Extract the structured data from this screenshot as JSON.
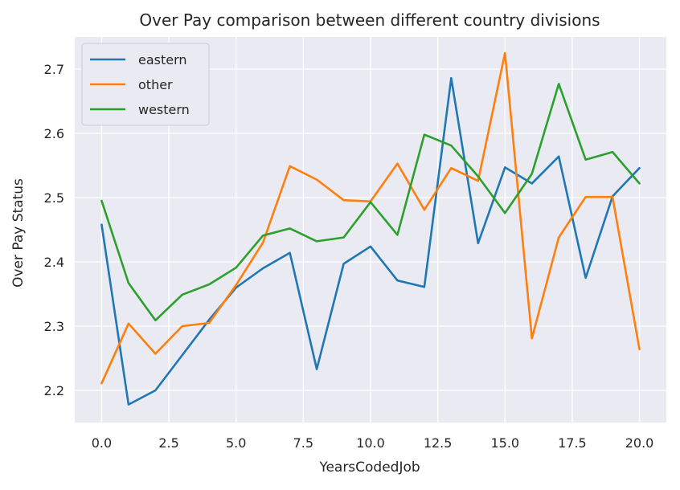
{
  "chart_data": {
    "type": "line",
    "title": "Over Pay comparison between different country divisions",
    "xlabel": "YearsCodedJob",
    "ylabel": "Over Pay Status",
    "xlim": [
      -1.0,
      21.0
    ],
    "ylim": [
      2.15,
      2.75
    ],
    "x_ticks": [
      0.0,
      2.5,
      5.0,
      7.5,
      10.0,
      12.5,
      15.0,
      17.5,
      20.0
    ],
    "x_tick_labels": [
      "0.0",
      "2.5",
      "5.0",
      "7.5",
      "10.0",
      "12.5",
      "15.0",
      "17.5",
      "20.0"
    ],
    "y_ticks": [
      2.2,
      2.3,
      2.4,
      2.5,
      2.6,
      2.7
    ],
    "y_tick_labels": [
      "2.2",
      "2.3",
      "2.4",
      "2.5",
      "2.6",
      "2.7"
    ],
    "grid": true,
    "legend_position": "top-left",
    "x": [
      0,
      1,
      2,
      3,
      4,
      5,
      6,
      7,
      8,
      9,
      10,
      11,
      12,
      13,
      14,
      15,
      16,
      17,
      18,
      19,
      20
    ],
    "series": [
      {
        "name": "eastern",
        "color": "#1f77b4",
        "values": [
          2.458,
          2.178,
          2.2,
          2.255,
          2.31,
          2.36,
          2.39,
          2.414,
          2.233,
          2.397,
          2.424,
          2.371,
          2.361,
          2.686,
          2.429,
          2.547,
          2.522,
          2.564,
          2.375,
          2.502,
          2.546
        ]
      },
      {
        "name": "other",
        "color": "#ff7f0e",
        "values": [
          2.211,
          2.304,
          2.257,
          2.3,
          2.305,
          2.364,
          2.43,
          2.549,
          2.528,
          2.496,
          2.494,
          2.553,
          2.481,
          2.546,
          2.526,
          2.725,
          2.281,
          2.438,
          2.501,
          2.501,
          2.264
        ]
      },
      {
        "name": "western",
        "color": "#2ca02c",
        "values": [
          2.495,
          2.367,
          2.309,
          2.349,
          2.365,
          2.391,
          2.441,
          2.452,
          2.432,
          2.438,
          2.493,
          2.442,
          2.598,
          2.581,
          2.533,
          2.476,
          2.537,
          2.677,
          2.559,
          2.571,
          2.522
        ]
      }
    ]
  },
  "style": {
    "plot_background": "#eaeaf2",
    "grid_color": "#ffffff",
    "legend_background": "#eaeaf2",
    "legend_border": "#cccccc"
  }
}
